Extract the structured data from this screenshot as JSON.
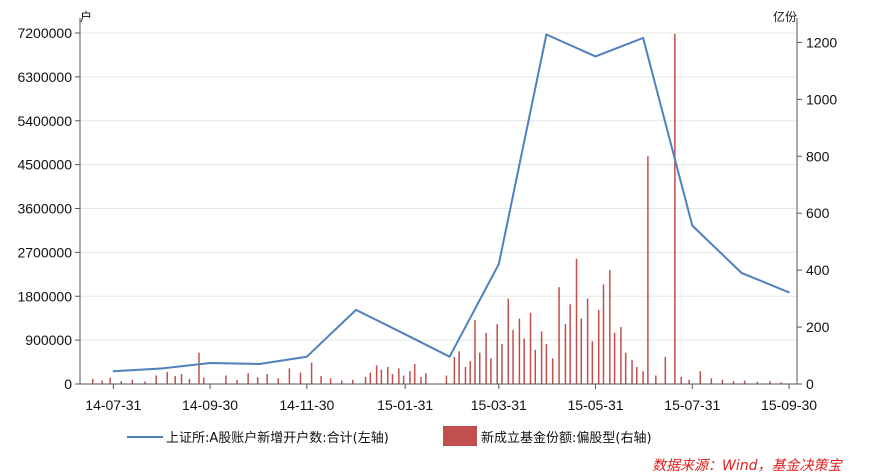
{
  "chart_data": {
    "type": "line+bar",
    "left_unit": "户",
    "right_unit": "亿份",
    "left_axis": {
      "ticks": [
        0,
        900000,
        1800000,
        2700000,
        3600000,
        4500000,
        5400000,
        6300000,
        7200000
      ],
      "range": [
        0,
        7200000
      ]
    },
    "right_axis": {
      "ticks": [
        0,
        200,
        400,
        600,
        800,
        1000,
        1200
      ],
      "range": [
        0,
        1233
      ]
    },
    "x_labels": [
      "14-07-31",
      "14-09-30",
      "14-11-30",
      "15-01-31",
      "15-03-31",
      "15-05-31",
      "15-07-31",
      "15-09-30"
    ],
    "line_series": {
      "name": "上证所:A股账户新增开户数:合计(左轴)",
      "color": "#4f81bd",
      "points": [
        {
          "x": "2014-07-31",
          "y": 260000
        },
        {
          "x": "2014-08-31",
          "y": 320000
        },
        {
          "x": "2014-09-30",
          "y": 430000
        },
        {
          "x": "2014-10-31",
          "y": 410000
        },
        {
          "x": "2014-11-30",
          "y": 560000
        },
        {
          "x": "2014-12-31",
          "y": 1520000
        },
        {
          "x": "2015-01-31",
          "y": 1020000
        },
        {
          "x": "2015-02-28",
          "y": 560000
        },
        {
          "x": "2015-03-31",
          "y": 2460000
        },
        {
          "x": "2015-04-30",
          "y": 7170000
        },
        {
          "x": "2015-05-31",
          "y": 6720000
        },
        {
          "x": "2015-06-30",
          "y": 7100000
        },
        {
          "x": "2015-07-31",
          "y": 3250000
        },
        {
          "x": "2015-08-31",
          "y": 2280000
        },
        {
          "x": "2015-09-30",
          "y": 1880000
        }
      ]
    },
    "bar_series": {
      "name": "新成立基金份额:偏股型(右轴)",
      "color": "#c0504d",
      "bars": [
        {
          "x": "2014-07-18",
          "v": 18
        },
        {
          "x": "2014-07-24",
          "v": 12
        },
        {
          "x": "2014-07-29",
          "v": 22
        },
        {
          "x": "2014-08-05",
          "v": 10
        },
        {
          "x": "2014-08-12",
          "v": 15
        },
        {
          "x": "2014-08-20",
          "v": 9
        },
        {
          "x": "2014-08-27",
          "v": 30
        },
        {
          "x": "2014-09-03",
          "v": 42
        },
        {
          "x": "2014-09-08",
          "v": 28
        },
        {
          "x": "2014-09-12",
          "v": 35
        },
        {
          "x": "2014-09-17",
          "v": 18
        },
        {
          "x": "2014-09-23",
          "v": 110
        },
        {
          "x": "2014-09-26",
          "v": 22
        },
        {
          "x": "2014-10-10",
          "v": 30
        },
        {
          "x": "2014-10-17",
          "v": 14
        },
        {
          "x": "2014-10-24",
          "v": 38
        },
        {
          "x": "2014-10-30",
          "v": 24
        },
        {
          "x": "2014-11-05",
          "v": 35
        },
        {
          "x": "2014-11-12",
          "v": 20
        },
        {
          "x": "2014-11-19",
          "v": 55
        },
        {
          "x": "2014-11-26",
          "v": 40
        },
        {
          "x": "2014-12-03",
          "v": 75
        },
        {
          "x": "2014-12-09",
          "v": 28
        },
        {
          "x": "2014-12-15",
          "v": 20
        },
        {
          "x": "2014-12-22",
          "v": 12
        },
        {
          "x": "2014-12-29",
          "v": 15
        },
        {
          "x": "2015-01-06",
          "v": 25
        },
        {
          "x": "2015-01-09",
          "v": 40
        },
        {
          "x": "2015-01-13",
          "v": 65
        },
        {
          "x": "2015-01-16",
          "v": 50
        },
        {
          "x": "2015-01-20",
          "v": 60
        },
        {
          "x": "2015-01-23",
          "v": 35
        },
        {
          "x": "2015-01-27",
          "v": 55
        },
        {
          "x": "2015-01-30",
          "v": 30
        },
        {
          "x": "2015-02-03",
          "v": 45
        },
        {
          "x": "2015-02-06",
          "v": 70
        },
        {
          "x": "2015-02-10",
          "v": 25
        },
        {
          "x": "2015-02-13",
          "v": 38
        },
        {
          "x": "2015-02-26",
          "v": 30
        },
        {
          "x": "2015-03-03",
          "v": 95
        },
        {
          "x": "2015-03-06",
          "v": 115
        },
        {
          "x": "2015-03-10",
          "v": 60
        },
        {
          "x": "2015-03-13",
          "v": 80
        },
        {
          "x": "2015-03-16",
          "v": 225
        },
        {
          "x": "2015-03-19",
          "v": 110
        },
        {
          "x": "2015-03-23",
          "v": 180
        },
        {
          "x": "2015-03-26",
          "v": 90
        },
        {
          "x": "2015-03-30",
          "v": 210
        },
        {
          "x": "2015-04-02",
          "v": 140
        },
        {
          "x": "2015-04-06",
          "v": 300
        },
        {
          "x": "2015-04-09",
          "v": 190
        },
        {
          "x": "2015-04-13",
          "v": 230
        },
        {
          "x": "2015-04-16",
          "v": 160
        },
        {
          "x": "2015-04-20",
          "v": 250
        },
        {
          "x": "2015-04-23",
          "v": 120
        },
        {
          "x": "2015-04-27",
          "v": 185
        },
        {
          "x": "2015-04-30",
          "v": 140
        },
        {
          "x": "2015-05-04",
          "v": 90
        },
        {
          "x": "2015-05-08",
          "v": 340
        },
        {
          "x": "2015-05-12",
          "v": 210
        },
        {
          "x": "2015-05-15",
          "v": 280
        },
        {
          "x": "2015-05-19",
          "v": 440
        },
        {
          "x": "2015-05-22",
          "v": 230
        },
        {
          "x": "2015-05-26",
          "v": 300
        },
        {
          "x": "2015-05-29",
          "v": 150
        },
        {
          "x": "2015-06-02",
          "v": 260
        },
        {
          "x": "2015-06-05",
          "v": 350
        },
        {
          "x": "2015-06-09",
          "v": 400
        },
        {
          "x": "2015-06-12",
          "v": 180
        },
        {
          "x": "2015-06-16",
          "v": 200
        },
        {
          "x": "2015-06-19",
          "v": 110
        },
        {
          "x": "2015-06-23",
          "v": 85
        },
        {
          "x": "2015-06-26",
          "v": 60
        },
        {
          "x": "2015-06-30",
          "v": 45
        },
        {
          "x": "2015-07-03",
          "v": 800
        },
        {
          "x": "2015-07-08",
          "v": 30
        },
        {
          "x": "2015-07-14",
          "v": 95
        },
        {
          "x": "2015-07-20",
          "v": 1230
        },
        {
          "x": "2015-07-24",
          "v": 25
        },
        {
          "x": "2015-07-29",
          "v": 15
        },
        {
          "x": "2015-08-05",
          "v": 45
        },
        {
          "x": "2015-08-12",
          "v": 20
        },
        {
          "x": "2015-08-19",
          "v": 15
        },
        {
          "x": "2015-08-26",
          "v": 10
        },
        {
          "x": "2015-09-02",
          "v": 12
        },
        {
          "x": "2015-09-10",
          "v": 8
        },
        {
          "x": "2015-09-18",
          "v": 10
        },
        {
          "x": "2015-09-25",
          "v": 6
        }
      ]
    }
  },
  "source_text": "数据来源：Wind，基金决策宝"
}
